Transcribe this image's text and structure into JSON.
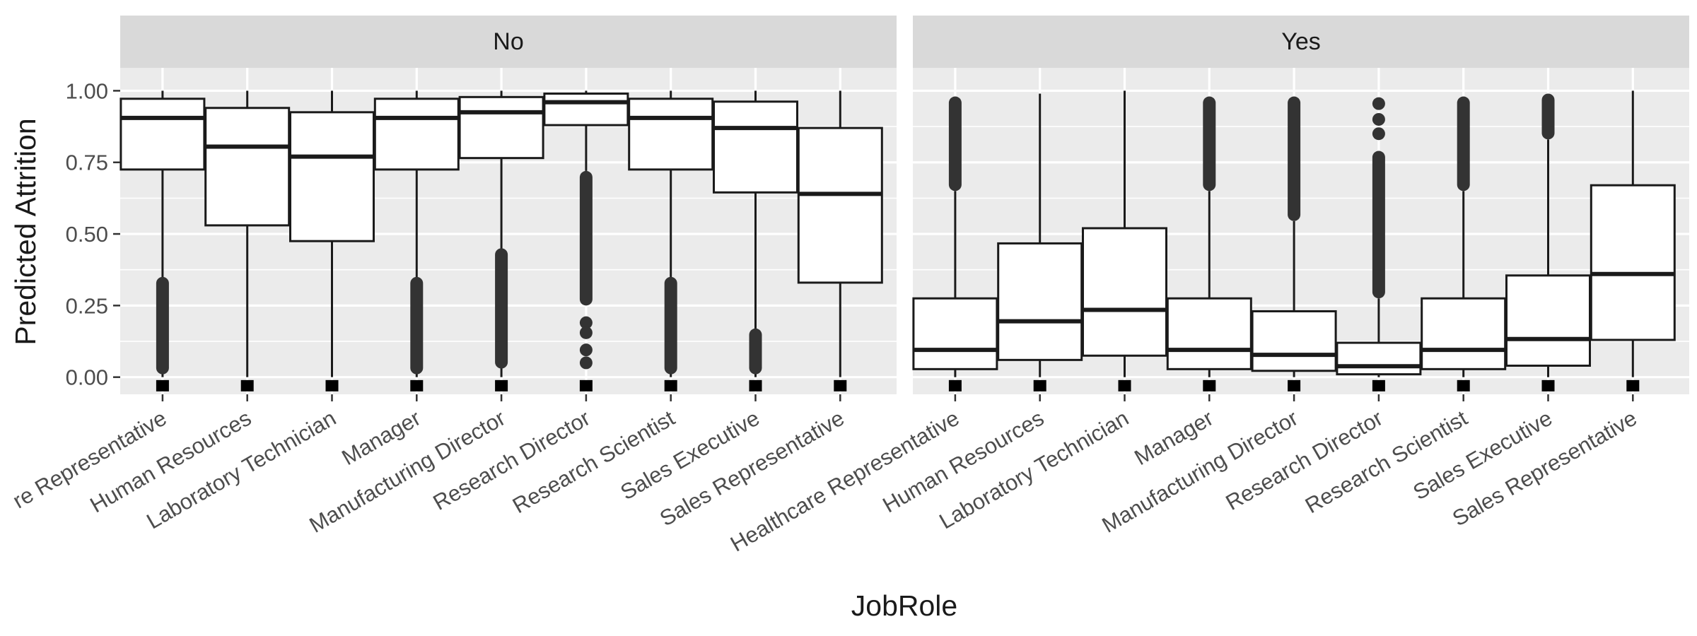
{
  "chart_data": {
    "type": "boxplot",
    "facet_variable": "Attrition",
    "xlabel": "JobRole",
    "ylabel": "Predicted Attrition",
    "ylim": [
      -0.06,
      1.08
    ],
    "y_ticks": [
      0.0,
      0.25,
      0.5,
      0.75,
      1.0
    ],
    "y_tick_labels": [
      "0.00",
      "0.25",
      "0.50",
      "0.75",
      "1.00"
    ],
    "grid": true,
    "categories": [
      "Healthcare Representative",
      "Human Resources",
      "Laboratory Technician",
      "Manager",
      "Manufacturing Director",
      "Research Director",
      "Research Scientist",
      "Sales Executive",
      "Sales Representative"
    ],
    "visible_tick_labels": {
      "No": [
        "re Representative",
        "Human Resources",
        "Laboratory Technician",
        "Manager",
        "Manufacturing Director",
        "Research Director",
        "Research Scientist",
        "Sales Executive",
        "Sales Representative"
      ],
      "Yes": [
        "Healthcare Representative",
        "Human Resources",
        "Laboratory Technician",
        "Manager",
        "Manufacturing Director",
        "Research Director",
        "Research Scientist",
        "Sales Executive",
        "Sales Representative"
      ]
    },
    "facets": [
      {
        "label": "No",
        "boxes": [
          {
            "category": "Healthcare Representative",
            "whisker_low": 0.0,
            "q1": 0.725,
            "median": 0.905,
            "q3": 0.972,
            "whisker_high": 1.0,
            "outlier_range": [
              0.01,
              0.35
            ]
          },
          {
            "category": "Human Resources",
            "whisker_low": 0.0,
            "q1": 0.53,
            "median": 0.805,
            "q3": 0.94,
            "whisker_high": 1.0
          },
          {
            "category": "Laboratory Technician",
            "whisker_low": 0.0,
            "q1": 0.475,
            "median": 0.77,
            "q3": 0.925,
            "whisker_high": 1.0
          },
          {
            "category": "Manager",
            "whisker_low": 0.0,
            "q1": 0.725,
            "median": 0.905,
            "q3": 0.972,
            "whisker_high": 1.0,
            "outlier_range": [
              0.01,
              0.35
            ]
          },
          {
            "category": "Manufacturing Director",
            "whisker_low": 0.0,
            "q1": 0.765,
            "median": 0.925,
            "q3": 0.978,
            "whisker_high": 1.0,
            "outlier_range": [
              0.03,
              0.45
            ]
          },
          {
            "category": "Research Director",
            "whisker_low": 0.72,
            "q1": 0.88,
            "median": 0.96,
            "q3": 0.99,
            "whisker_high": 1.0,
            "outlier_range": [
              0.25,
              0.72
            ],
            "outliers": [
              0.19,
              0.155,
              0.095,
              0.05
            ]
          },
          {
            "category": "Research Scientist",
            "whisker_low": 0.0,
            "q1": 0.725,
            "median": 0.905,
            "q3": 0.972,
            "whisker_high": 1.0,
            "outlier_range": [
              0.01,
              0.35
            ]
          },
          {
            "category": "Sales Executive",
            "whisker_low": 0.0,
            "q1": 0.645,
            "median": 0.87,
            "q3": 0.962,
            "whisker_high": 1.0,
            "outlier_range": [
              0.01,
              0.17
            ]
          },
          {
            "category": "Sales Representative",
            "whisker_low": 0.0,
            "q1": 0.33,
            "median": 0.64,
            "q3": 0.87,
            "whisker_high": 1.0
          }
        ]
      },
      {
        "label": "Yes",
        "boxes": [
          {
            "category": "Healthcare Representative",
            "whisker_low": 0.0,
            "q1": 0.028,
            "median": 0.095,
            "q3": 0.275,
            "whisker_high": 0.65,
            "outlier_range": [
              0.65,
              0.98
            ]
          },
          {
            "category": "Human Resources",
            "whisker_low": 0.0,
            "q1": 0.06,
            "median": 0.195,
            "q3": 0.467,
            "whisker_high": 0.99
          },
          {
            "category": "Laboratory Technician",
            "whisker_low": 0.0,
            "q1": 0.075,
            "median": 0.235,
            "q3": 0.52,
            "whisker_high": 1.0
          },
          {
            "category": "Manager",
            "whisker_low": 0.0,
            "q1": 0.028,
            "median": 0.095,
            "q3": 0.275,
            "whisker_high": 0.65,
            "outlier_range": [
              0.65,
              0.98
            ]
          },
          {
            "category": "Manufacturing Director",
            "whisker_low": 0.0,
            "q1": 0.022,
            "median": 0.078,
            "q3": 0.23,
            "whisker_high": 0.545,
            "outlier_range": [
              0.545,
              0.98
            ]
          },
          {
            "category": "Research Director",
            "whisker_low": 0.0,
            "q1": 0.01,
            "median": 0.038,
            "q3": 0.12,
            "whisker_high": 0.275,
            "outlier_range": [
              0.275,
              0.79
            ],
            "outliers": [
              0.85,
              0.9,
              0.955
            ]
          },
          {
            "category": "Research Scientist",
            "whisker_low": 0.0,
            "q1": 0.028,
            "median": 0.095,
            "q3": 0.275,
            "whisker_high": 0.65,
            "outlier_range": [
              0.65,
              0.98
            ]
          },
          {
            "category": "Sales Executive",
            "whisker_low": 0.0,
            "q1": 0.04,
            "median": 0.133,
            "q3": 0.355,
            "whisker_high": 0.83,
            "outlier_range": [
              0.83,
              0.99
            ]
          },
          {
            "category": "Sales Representative",
            "whisker_low": 0.0,
            "q1": 0.13,
            "median": 0.36,
            "q3": 0.67,
            "whisker_high": 1.0
          }
        ]
      }
    ],
    "square_markers_y": -0.03,
    "colors": {
      "panel_bg": "#ebebeb",
      "strip_bg": "#d9d9d9",
      "grid": "#ffffff",
      "box_fill": "#ffffff",
      "box_line": "#1a1a1a",
      "outlier": "#333333",
      "marker": "#000000"
    }
  }
}
